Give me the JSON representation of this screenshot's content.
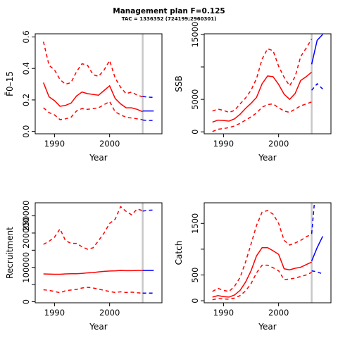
{
  "title": "Management plan F=0.125",
  "subtitle": "TAC = 1336352 (724199;2960301)",
  "colors": {
    "history": "#ff0000",
    "projection": "#0000ff",
    "marker": "#c8c8c8"
  },
  "chart_data": [
    {
      "type": "line",
      "id": "fbar",
      "xlabel": "Year",
      "ylabel": "F̄0–15",
      "xlim": [
        1986.5,
        2009.5
      ],
      "ylim": [
        -0.015,
        0.62
      ],
      "xticks": [
        1990,
        2000
      ],
      "yticks": [
        0,
        0.2,
        0.4,
        0.6
      ],
      "yticklabels": [
        "0.0",
        "0.2",
        "0.4",
        "0.6"
      ],
      "marker_year": 2006,
      "history": {
        "x": [
          1988,
          1989,
          1990,
          1991,
          1992,
          1993,
          1994,
          1995,
          1996,
          1997,
          1998,
          1999,
          2000,
          2001,
          2002,
          2003,
          2004,
          2005,
          2006
        ],
        "median": [
          0.31,
          0.22,
          0.195,
          0.16,
          0.165,
          0.18,
          0.225,
          0.25,
          0.24,
          0.235,
          0.23,
          0.26,
          0.29,
          0.21,
          0.175,
          0.15,
          0.15,
          0.14,
          0.125
        ],
        "upper": [
          0.57,
          0.42,
          0.39,
          0.33,
          0.3,
          0.31,
          0.38,
          0.43,
          0.42,
          0.36,
          0.35,
          0.39,
          0.45,
          0.34,
          0.28,
          0.24,
          0.25,
          0.23,
          0.22
        ],
        "lower": [
          0.15,
          0.12,
          0.105,
          0.075,
          0.08,
          0.09,
          0.13,
          0.145,
          0.14,
          0.145,
          0.15,
          0.17,
          0.19,
          0.125,
          0.105,
          0.09,
          0.085,
          0.08,
          0.075
        ]
      },
      "projection": {
        "x": [
          2006,
          2007,
          2008
        ],
        "median": [
          0.13,
          0.13,
          0.13
        ],
        "upper": [
          0.222,
          0.218,
          0.216
        ],
        "lower": [
          0.072,
          0.07,
          0.07
        ]
      }
    },
    {
      "type": "line",
      "id": "ssb",
      "xlabel": "Year",
      "ylabel": "SSB",
      "xlim": [
        1986.5,
        2009.5
      ],
      "ylim": [
        -300,
        15100
      ],
      "xticks": [
        1990,
        2000
      ],
      "yticks": [
        0,
        5000,
        10000,
        15000
      ],
      "yticklabels": [
        "0",
        "5000",
        "",
        "15000"
      ],
      "marker_year": 2006,
      "history": {
        "x": [
          1988,
          1989,
          1990,
          1991,
          1992,
          1993,
          1994,
          1995,
          1996,
          1997,
          1998,
          1999,
          2000,
          2001,
          2002,
          2003,
          2004,
          2005,
          2006
        ],
        "median": [
          1500,
          1800,
          1750,
          1650,
          2000,
          2700,
          3600,
          4400,
          5300,
          7400,
          8600,
          8500,
          7300,
          5800,
          5000,
          5900,
          7900,
          8500,
          9200
        ],
        "upper": [
          3200,
          3500,
          3300,
          3000,
          3300,
          4300,
          5200,
          6400,
          8200,
          11200,
          12800,
          12500,
          10100,
          8400,
          7100,
          8500,
          11600,
          12900,
          14300
        ],
        "lower": [
          50,
          400,
          500,
          650,
          900,
          1300,
          1800,
          2300,
          2900,
          3800,
          4200,
          4300,
          3700,
          3200,
          3000,
          3500,
          4000,
          4300,
          4600
        ]
      },
      "projection": {
        "x": [
          2006,
          2007,
          2008
        ],
        "median": [
          10400,
          14100,
          15000
        ],
        "upper": [
          16000,
          16000,
          16000
        ],
        "lower": [
          6400,
          7400,
          6600
        ]
      }
    },
    {
      "type": "line",
      "id": "recruitment",
      "xlabel": "Year",
      "ylabel": "Recruitment",
      "xlim": [
        1986.5,
        2009.5
      ],
      "ylim": [
        -3000,
        288000
      ],
      "xticks": [
        1990,
        2000
      ],
      "yticks": [
        0,
        50000,
        100000,
        150000,
        200000,
        250000
      ],
      "yticklabels": [
        "0",
        "",
        "100000",
        "",
        "200000",
        "250000"
      ],
      "marker_year": 2006,
      "history": {
        "x": [
          1988,
          1989,
          1990,
          1991,
          1992,
          1993,
          1994,
          1995,
          1996,
          1997,
          1998,
          1999,
          2000,
          2001,
          2002,
          2003,
          2004,
          2005,
          2006
        ],
        "median": [
          81000,
          80500,
          80000,
          80000,
          81000,
          81500,
          81500,
          82500,
          84000,
          85000,
          87000,
          88500,
          89500,
          90000,
          91000,
          90500,
          90500,
          91000,
          91000
        ],
        "upper": [
          167000,
          176000,
          188000,
          212000,
          178000,
          170000,
          170000,
          160000,
          153000,
          157000,
          178000,
          200000,
          228000,
          240000,
          277000,
          263000,
          253000,
          270000,
          265000
        ],
        "lower": [
          35000,
          33000,
          30000,
          26000,
          32000,
          34000,
          36000,
          40000,
          42000,
          40000,
          37000,
          33000,
          30000,
          27000,
          29000,
          27000,
          28000,
          26000,
          25000
        ]
      },
      "projection": {
        "x": [
          2006,
          2007,
          2008
        ],
        "median": [
          91000,
          91000,
          91000
        ],
        "upper": [
          264000,
          266000,
          267000
        ],
        "lower": [
          25000,
          25000,
          25000
        ]
      }
    },
    {
      "type": "line",
      "id": "catch",
      "xlabel": "Year",
      "ylabel": "Catch",
      "xlim": [
        1986.5,
        2009.5
      ],
      "ylim": [
        -40,
        1900
      ],
      "xticks": [
        1990,
        2000
      ],
      "yticks": [
        0,
        500,
        1000,
        1500
      ],
      "yticklabels": [
        "0",
        "500",
        "",
        "1500"
      ],
      "marker_year": 2006,
      "history": {
        "x": [
          1988,
          1989,
          1990,
          1991,
          1992,
          1993,
          1994,
          1995,
          1996,
          1997,
          1998,
          1999,
          2000,
          2001,
          2002,
          2003,
          2004,
          2005,
          2006
        ],
        "median": [
          70,
          100,
          80,
          70,
          110,
          200,
          360,
          580,
          870,
          1030,
          1030,
          970,
          900,
          620,
          600,
          630,
          650,
          700,
          750
        ],
        "upper": [
          180,
          240,
          200,
          180,
          280,
          450,
          750,
          1100,
          1460,
          1720,
          1750,
          1680,
          1500,
          1170,
          1080,
          1120,
          1170,
          1240,
          1290
        ],
        "lower": [
          20,
          40,
          35,
          30,
          50,
          100,
          190,
          330,
          540,
          690,
          690,
          640,
          580,
          410,
          420,
          440,
          470,
          500,
          550
        ]
      },
      "projection": {
        "x": [
          2006,
          2007,
          2008
        ],
        "median": [
          770,
          1030,
          1250
        ],
        "upper": [
          1300,
          2500,
          2500
        ],
        "lower": [
          580,
          560,
          520
        ]
      }
    }
  ]
}
